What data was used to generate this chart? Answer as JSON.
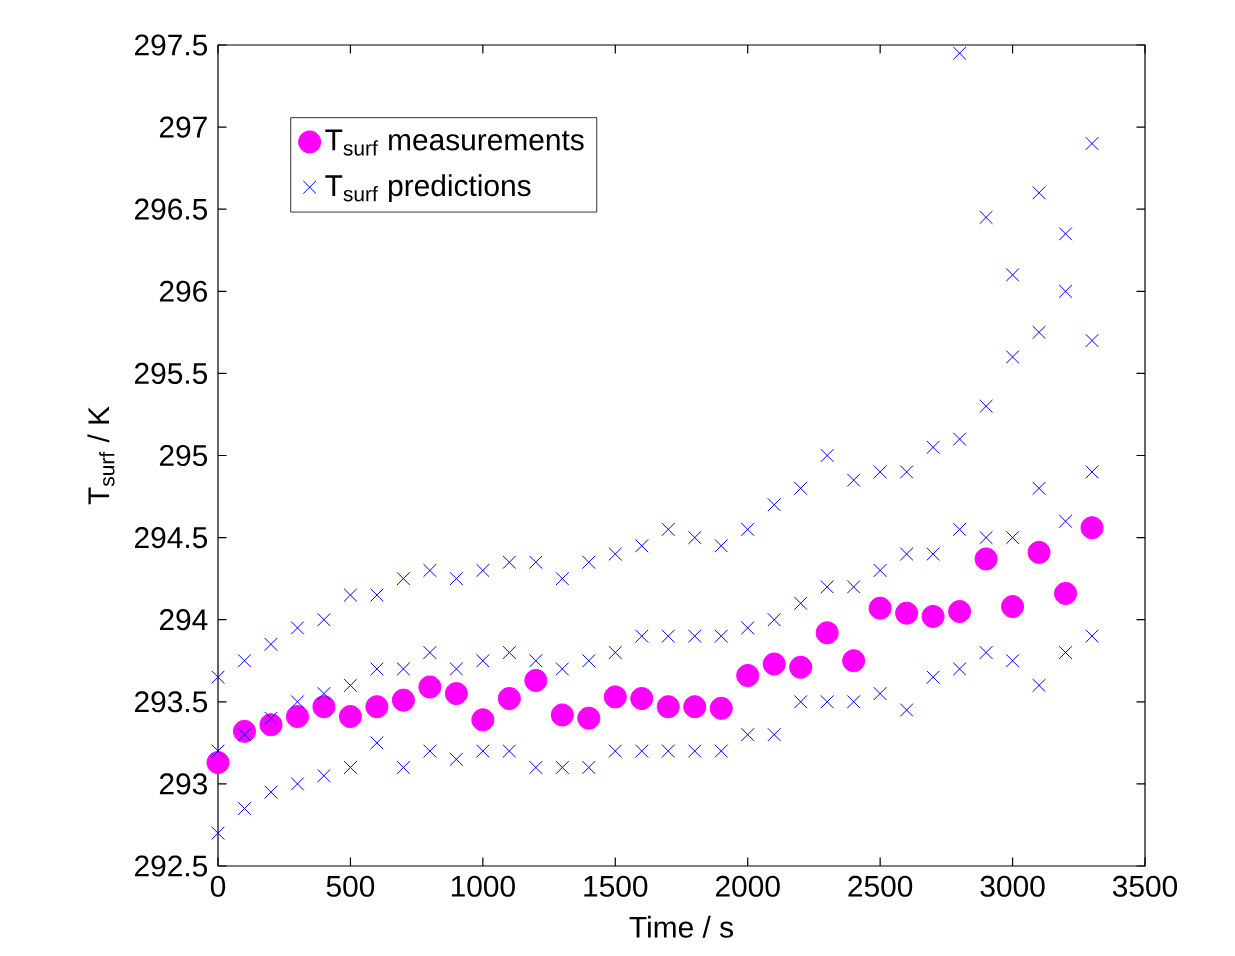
{
  "chart_data": {
    "type": "scatter",
    "xlabel": "Time / s",
    "ylabel": "T$_{surf}$ / K",
    "xlim": [
      0,
      3500
    ],
    "xticks": [
      0,
      500,
      1000,
      1500,
      2000,
      2500,
      3000,
      3500
    ],
    "ylim": [
      292.5,
      297.5
    ],
    "yticks": [
      292.5,
      293,
      293.5,
      294,
      294.5,
      295,
      295.5,
      296,
      296.5,
      297,
      297.5
    ],
    "grid": false,
    "legend": "top left",
    "series": [
      {
        "name": "T$_{surf}$ measurements",
        "color": "#ff00ff",
        "marker": "circle",
        "x": [
          0,
          100,
          200,
          300,
          400,
          500,
          600,
          700,
          800,
          900,
          1000,
          1100,
          1200,
          1300,
          1400,
          1500,
          1600,
          1700,
          1800,
          1900,
          2000,
          2100,
          2200,
          2300,
          2400,
          2500,
          2600,
          2700,
          2800,
          2900,
          3000,
          3100,
          3200,
          3300
        ],
        "values": [
          293.13,
          293.32,
          293.36,
          293.41,
          293.47,
          293.41,
          293.47,
          293.51,
          293.59,
          293.55,
          293.39,
          293.52,
          293.63,
          293.42,
          293.4,
          293.53,
          293.52,
          293.47,
          293.47,
          293.46,
          293.66,
          293.73,
          293.71,
          293.92,
          293.75,
          294.07,
          294.04,
          294.02,
          294.05,
          294.37,
          294.08,
          294.41,
          294.16,
          294.56
        ]
      },
      {
        "name": "T$_{surf}$ predictions",
        "color": "#0000ff",
        "marker": "cross",
        "x": [
          0,
          0,
          0,
          100,
          100,
          100,
          200,
          200,
          200,
          300,
          300,
          300,
          400,
          400,
          400,
          500,
          500,
          500,
          600,
          600,
          600,
          700,
          700,
          700,
          800,
          800,
          800,
          900,
          900,
          900,
          1000,
          1000,
          1000,
          1100,
          1100,
          1100,
          1200,
          1200,
          1200,
          1300,
          1300,
          1300,
          1400,
          1400,
          1400,
          1500,
          1500,
          1500,
          1600,
          1600,
          1600,
          1700,
          1700,
          1700,
          1800,
          1800,
          1800,
          1900,
          1900,
          1900,
          2000,
          2000,
          2000,
          2100,
          2100,
          2100,
          2200,
          2200,
          2200,
          2300,
          2300,
          2300,
          2400,
          2400,
          2400,
          2500,
          2500,
          2500,
          2600,
          2600,
          2600,
          2700,
          2700,
          2700,
          2800,
          2800,
          2800,
          2800,
          2900,
          2900,
          2900,
          2900,
          3000,
          3000,
          3000,
          3000,
          3100,
          3100,
          3100,
          3100,
          3200,
          3200,
          3200,
          3200,
          3300,
          3300,
          3300,
          3300
        ],
        "values": [
          292.7,
          293.2,
          293.65,
          292.85,
          293.3,
          293.75,
          292.95,
          293.4,
          293.85,
          293.0,
          293.5,
          293.95,
          293.05,
          293.55,
          294.0,
          293.1,
          293.6,
          294.15,
          293.25,
          293.7,
          294.15,
          293.1,
          293.7,
          294.25,
          293.2,
          293.8,
          294.3,
          293.15,
          293.7,
          294.25,
          293.2,
          293.75,
          294.3,
          293.2,
          293.8,
          294.35,
          293.1,
          293.75,
          294.35,
          293.1,
          293.7,
          294.25,
          293.1,
          293.75,
          294.35,
          293.2,
          293.8,
          294.4,
          293.2,
          293.9,
          294.45,
          293.2,
          293.9,
          294.55,
          293.2,
          293.9,
          294.5,
          293.2,
          293.9,
          294.45,
          293.3,
          293.95,
          294.55,
          293.3,
          294.0,
          294.7,
          293.5,
          294.1,
          294.8,
          293.5,
          294.2,
          295.0,
          293.5,
          294.2,
          294.85,
          293.55,
          294.3,
          294.9,
          293.45,
          294.4,
          294.9,
          293.65,
          294.4,
          295.05,
          293.7,
          294.55,
          295.1,
          297.45,
          293.8,
          294.5,
          295.3,
          296.45,
          293.75,
          294.5,
          295.6,
          296.1,
          293.6,
          294.8,
          295.75,
          296.6,
          293.8,
          294.6,
          296.0,
          296.35,
          293.9,
          294.9,
          295.7,
          296.9
        ]
      }
    ]
  }
}
